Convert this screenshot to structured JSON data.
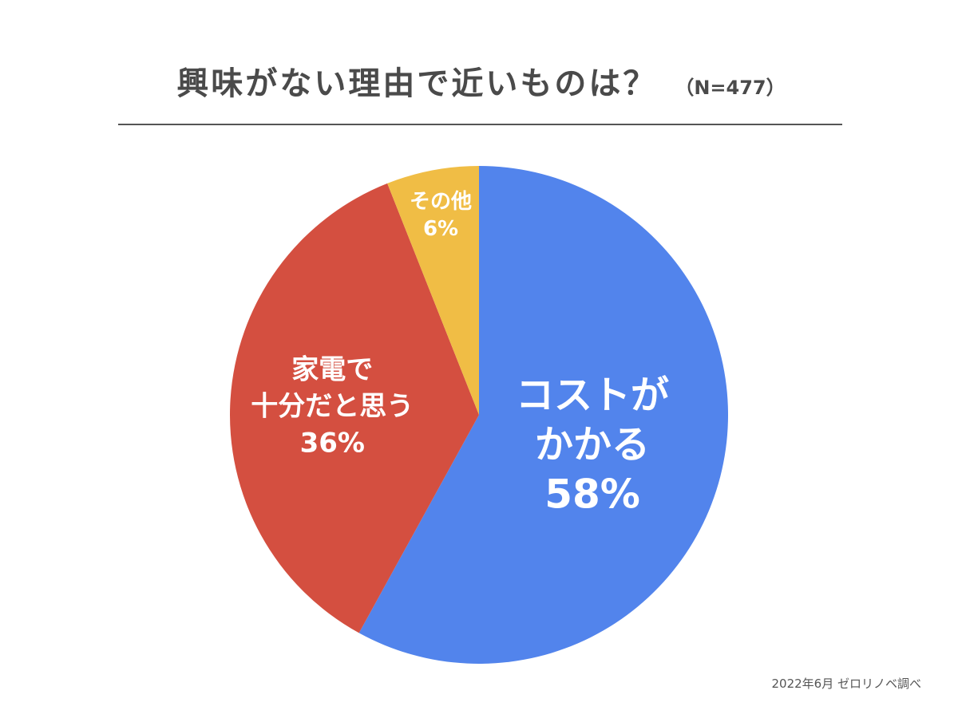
{
  "header": {
    "title": "興味がない理由で近いものは？",
    "subtitle": "（N=477）"
  },
  "chart_data": {
    "type": "pie",
    "title": "興味がない理由で近いものは？",
    "start_angle_deg": 0,
    "direction": "clockwise",
    "slices": [
      {
        "label_lines": [
          "コストが",
          "かかる"
        ],
        "value": 58,
        "value_label": "58%",
        "color": "#5284ec"
      },
      {
        "label_lines": [
          "家電で",
          "十分だと思う"
        ],
        "value": 36,
        "value_label": "36%",
        "color": "#d44f40"
      },
      {
        "label_lines": [
          "その他"
        ],
        "value": 6,
        "value_label": "6%",
        "color": "#f0bd45"
      }
    ]
  },
  "footer": {
    "source": "2022年6月 ゼロリノベ調べ"
  }
}
